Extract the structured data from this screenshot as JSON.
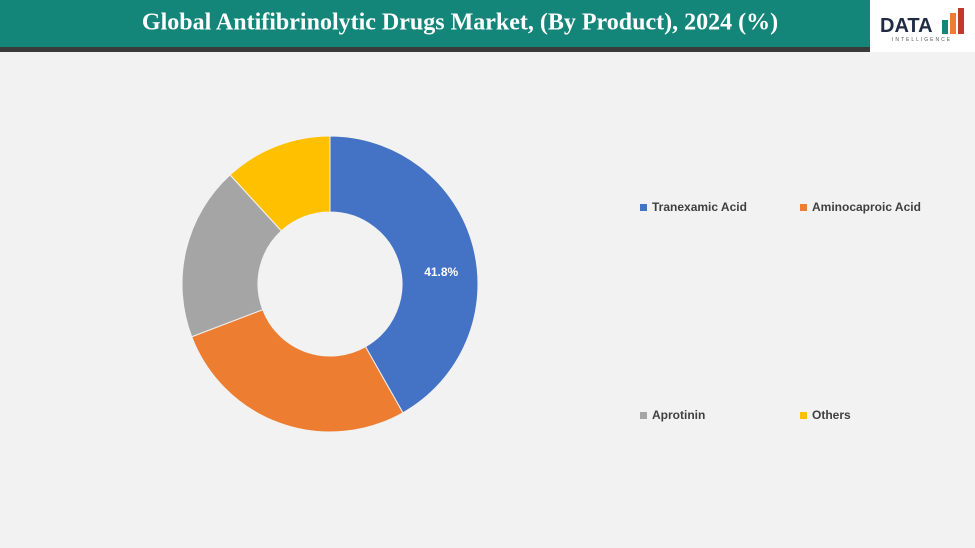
{
  "chart_data": {
    "type": "donut",
    "title": "Global Antifibrinolytic Drugs Market, (By Product), 2024 (%)",
    "categories": [
      "Tranexamic Acid",
      "Aminocaproic Acid",
      "Aprotinin",
      "Others"
    ],
    "values": [
      41.8,
      27.4,
      19.0,
      11.8
    ],
    "value_labels": [
      "41.8%",
      null,
      null,
      null
    ],
    "colors": [
      "#4472c4",
      "#ed7d31",
      "#a5a5a5",
      "#ffc000"
    ],
    "legend": "right"
  },
  "logo": {
    "text": "DATA",
    "subtext": "INTELLIGENCE"
  }
}
